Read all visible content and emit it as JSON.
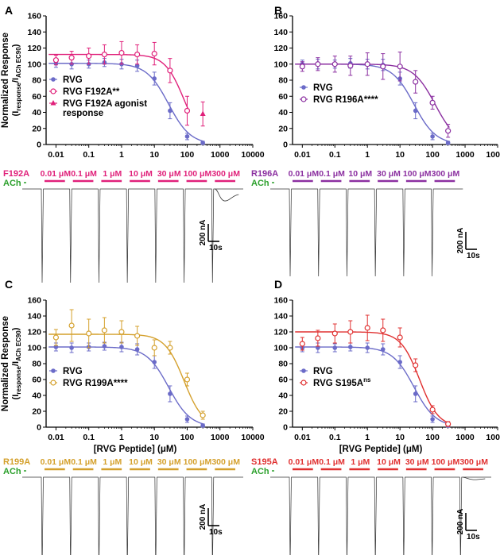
{
  "rvg_color": "#6b6bc8",
  "ach_color": "#2ca02c",
  "panels": [
    {
      "letter": "A",
      "mutant": "F192A",
      "color": "#e0207a",
      "ylabel_main": "Normalized Response",
      "ylabel_sub_a": "(I",
      "ylabel_sub_b": "response",
      "ylabel_sub_c": "/I",
      "ylabel_sub_d": "ACh EC90",
      "ylabel_sub_e": ")",
      "xlabel": "",
      "legend": [
        {
          "label": "RVG",
          "sup": ""
        },
        {
          "label": "RVG F192A**",
          "sup": ""
        },
        {
          "label": "RVG F192A agonist",
          "sup": ""
        },
        {
          "label": "response",
          "sup": ""
        }
      ],
      "trace_label": "F192A",
      "ach_label": "ACh",
      "concentrations": [
        "0.01 μM",
        "0.1 μM",
        "1 μM",
        "10 μM",
        "30 μM",
        "100 μM",
        "300 μM"
      ],
      "scale_current": "200 nA",
      "scale_time": "10s"
    },
    {
      "letter": "B",
      "mutant": "R196A",
      "color": "#8b2fa0",
      "ylabel_main": "",
      "xlabel": "",
      "legend": [
        {
          "label": "RVG",
          "sup": ""
        },
        {
          "label": "RVG R196A****",
          "sup": ""
        }
      ],
      "trace_label": "R196A",
      "ach_label": "ACh",
      "concentrations": [
        "0.01 μM",
        "0.1 μM",
        "10 μM",
        "30 μM",
        "100 μM",
        "300 μM"
      ],
      "scale_current": "200 nA",
      "scale_time": "10s"
    },
    {
      "letter": "C",
      "mutant": "R199A",
      "color": "#d4a02c",
      "ylabel_main": "Normalized Response",
      "ylabel_sub_a": "(I",
      "ylabel_sub_b": "response",
      "ylabel_sub_c": "/I",
      "ylabel_sub_d": "ACh EC90",
      "ylabel_sub_e": ")",
      "xlabel": "[RVG Peptide] (μM)",
      "legend": [
        {
          "label": "RVG",
          "sup": ""
        },
        {
          "label": "RVG R199A****",
          "sup": ""
        }
      ],
      "trace_label": "R199A",
      "ach_label": "ACh",
      "concentrations": [
        "0.01 μM",
        "0.1 μM",
        "1 μM",
        "10 μM",
        "30 μM",
        "100 μM",
        "300 μM"
      ],
      "scale_current": "200 nA",
      "scale_time": "10s"
    },
    {
      "letter": "D",
      "mutant": "S195A",
      "color": "#e03030",
      "ylabel_main": "",
      "xlabel": "[RVG Peptide] (μM)",
      "legend": [
        {
          "label": "RVG",
          "sup": ""
        },
        {
          "label": "RVG S195A",
          "sup": "ns"
        }
      ],
      "trace_label": "S195A",
      "ach_label": "ACh",
      "concentrations": [
        "0.01 μM",
        "0.1 μM",
        "1 μM",
        "10 μM",
        "30 μM",
        "100 μM",
        "300 μM"
      ],
      "scale_current": "200 nA",
      "scale_time": "10s"
    }
  ],
  "chart_data": [
    {
      "type": "scatter",
      "panel": "A",
      "title": "",
      "xlabel": "",
      "ylabel": "Normalized Response (Iresponse/IACh EC90)",
      "xscale": "log",
      "xlim": [
        0.005,
        10000
      ],
      "ylim": [
        0,
        160
      ],
      "xticks": [
        0.01,
        0.1,
        1,
        10,
        100,
        1000,
        10000
      ],
      "xtick_labels": [
        "0.01",
        "0.1",
        "1",
        "10",
        "100",
        "1000",
        "10000"
      ],
      "yticks": [
        0,
        20,
        40,
        60,
        80,
        100,
        120,
        140,
        160
      ],
      "ytick_labels": [
        "0",
        "20",
        "40",
        "60",
        "80",
        "100",
        "120",
        "140",
        "160"
      ],
      "legend_position": "left",
      "series": [
        {
          "name": "RVG",
          "marker": "filled-circle",
          "x": [
            0.01,
            0.03,
            0.1,
            0.3,
            1,
            3,
            10,
            30,
            100,
            300
          ],
          "y": [
            101,
            100,
            100,
            102,
            100,
            98,
            82,
            42,
            10,
            2
          ],
          "err": [
            5,
            6,
            5,
            5,
            6,
            7,
            8,
            10,
            4,
            2
          ],
          "fit": {
            "top": 101,
            "bottom": 0,
            "ic50": 27,
            "hill": 1.3
          }
        },
        {
          "name": "RVG F192A**",
          "marker": "open-circle",
          "x": [
            0.01,
            0.03,
            0.1,
            0.3,
            1,
            3,
            10,
            30,
            100
          ],
          "y": [
            105,
            108,
            110,
            112,
            114,
            112,
            113,
            92,
            42
          ],
          "err": [
            6,
            8,
            10,
            12,
            14,
            12,
            14,
            15,
            18
          ],
          "fit": {
            "top": 112,
            "bottom": 0,
            "ic50": 80,
            "hill": 1.5
          }
        },
        {
          "name": "RVG F192A agonist response",
          "marker": "filled-triangle",
          "x": [
            300
          ],
          "y": [
            38
          ],
          "err": [
            15
          ]
        }
      ]
    },
    {
      "type": "scatter",
      "panel": "B",
      "title": "",
      "xlabel": "",
      "ylabel": "",
      "xscale": "log",
      "xlim": [
        0.005,
        10000
      ],
      "ylim": [
        0,
        160
      ],
      "xticks": [
        0.01,
        0.1,
        1,
        10,
        100,
        1000,
        10000
      ],
      "xtick_labels": [
        "0.01",
        "0.1",
        "1",
        "10",
        "100",
        "1000",
        "10000"
      ],
      "yticks": [
        0,
        20,
        40,
        60,
        80,
        100,
        120,
        140,
        160
      ],
      "ytick_labels": [
        "0",
        "20",
        "40",
        "60",
        "80",
        "100",
        "120",
        "140",
        "160"
      ],
      "legend_position": "left",
      "series": [
        {
          "name": "RVG",
          "marker": "filled-circle",
          "x": [
            0.01,
            0.03,
            0.1,
            0.3,
            1,
            3,
            10,
            30,
            100,
            300
          ],
          "y": [
            100,
            100,
            100,
            101,
            100,
            99,
            82,
            42,
            10,
            2
          ],
          "err": [
            5,
            6,
            5,
            6,
            6,
            7,
            8,
            10,
            4,
            2
          ],
          "fit": {
            "top": 100,
            "bottom": 0,
            "ic50": 27,
            "hill": 1.3
          }
        },
        {
          "name": "RVG R196A****",
          "marker": "open-circle",
          "x": [
            0.01,
            0.03,
            0.1,
            0.3,
            1,
            3,
            10,
            30,
            100,
            300
          ],
          "y": [
            97,
            100,
            100,
            98,
            100,
            97,
            97,
            78,
            52,
            17
          ],
          "err": [
            6,
            8,
            10,
            12,
            14,
            16,
            18,
            14,
            8,
            8
          ],
          "fit": {
            "top": 100,
            "bottom": 0,
            "ic50": 120,
            "hill": 1.3
          }
        }
      ]
    },
    {
      "type": "scatter",
      "panel": "C",
      "title": "",
      "xlabel": "[RVG Peptide] (μM)",
      "ylabel": "Normalized Response (Iresponse/IACh EC90)",
      "xscale": "log",
      "xlim": [
        0.005,
        10000
      ],
      "ylim": [
        0,
        160
      ],
      "xticks": [
        0.01,
        0.1,
        1,
        10,
        100,
        1000,
        10000
      ],
      "xtick_labels": [
        "0.01",
        "0.1",
        "1",
        "10",
        "100",
        "1000",
        "10000"
      ],
      "yticks": [
        0,
        20,
        40,
        60,
        80,
        100,
        120,
        140,
        160
      ],
      "ytick_labels": [
        "0",
        "20",
        "40",
        "60",
        "80",
        "100",
        "120",
        "140",
        "160"
      ],
      "legend_position": "left",
      "series": [
        {
          "name": "RVG",
          "marker": "filled-circle",
          "x": [
            0.01,
            0.03,
            0.1,
            0.3,
            1,
            3,
            10,
            30,
            100,
            300
          ],
          "y": [
            101,
            100,
            101,
            102,
            101,
            98,
            82,
            42,
            10,
            2
          ],
          "err": [
            5,
            6,
            5,
            5,
            6,
            7,
            8,
            10,
            4,
            2
          ],
          "fit": {
            "top": 101,
            "bottom": 0,
            "ic50": 27,
            "hill": 1.3
          }
        },
        {
          "name": "RVG R199A****",
          "marker": "open-circle",
          "x": [
            0.01,
            0.03,
            0.1,
            0.3,
            1,
            3,
            10,
            30,
            100,
            300
          ],
          "y": [
            113,
            128,
            118,
            122,
            120,
            115,
            100,
            100,
            60,
            15
          ],
          "err": [
            10,
            20,
            18,
            16,
            14,
            12,
            10,
            8,
            8,
            5
          ],
          "fit": {
            "top": 117,
            "bottom": 0,
            "ic50": 80,
            "hill": 1.5
          }
        }
      ]
    },
    {
      "type": "scatter",
      "panel": "D",
      "title": "",
      "xlabel": "[RVG Peptide] (μM)",
      "ylabel": "",
      "xscale": "log",
      "xlim": [
        0.005,
        10000
      ],
      "ylim": [
        0,
        160
      ],
      "xticks": [
        0.01,
        0.1,
        1,
        10,
        100,
        1000,
        10000
      ],
      "xtick_labels": [
        "0.01",
        "0.1",
        "1",
        "10",
        "100",
        "1000",
        "10000"
      ],
      "yticks": [
        0,
        20,
        40,
        60,
        80,
        100,
        120,
        140,
        160
      ],
      "ytick_labels": [
        "0",
        "20",
        "40",
        "60",
        "80",
        "100",
        "120",
        "140",
        "160"
      ],
      "legend_position": "left",
      "series": [
        {
          "name": "RVG",
          "marker": "filled-circle",
          "x": [
            0.01,
            0.03,
            0.1,
            0.3,
            1,
            3,
            10,
            30,
            100,
            300
          ],
          "y": [
            100,
            100,
            100,
            101,
            100,
            98,
            82,
            42,
            10,
            2
          ],
          "err": [
            5,
            6,
            5,
            5,
            6,
            7,
            8,
            10,
            4,
            2
          ],
          "fit": {
            "top": 101,
            "bottom": 0,
            "ic50": 27,
            "hill": 1.3
          }
        },
        {
          "name": "RVG S195A ns",
          "marker": "open-circle",
          "x": [
            0.01,
            0.03,
            0.1,
            0.3,
            1,
            3,
            10,
            30,
            100,
            300
          ],
          "y": [
            105,
            112,
            118,
            120,
            125,
            122,
            113,
            78,
            22,
            4
          ],
          "err": [
            8,
            10,
            12,
            14,
            16,
            14,
            12,
            8,
            5,
            3
          ],
          "fit": {
            "top": 120,
            "bottom": 0,
            "ic50": 40,
            "hill": 1.5
          }
        }
      ]
    }
  ]
}
